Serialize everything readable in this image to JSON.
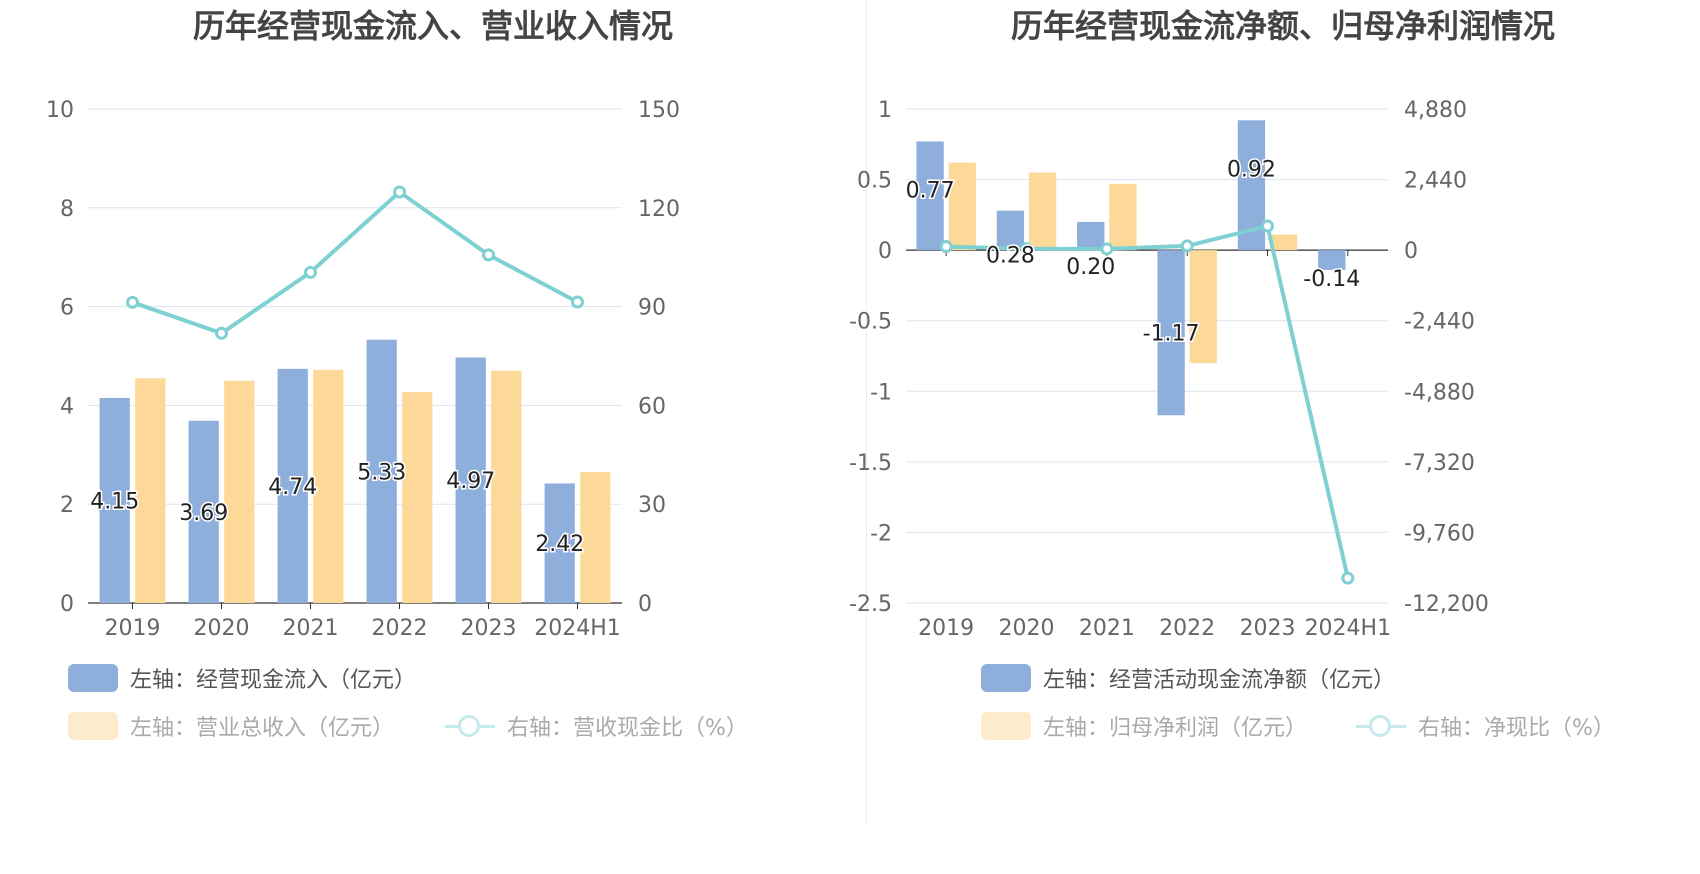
{
  "colors": {
    "bar_primary": "#8eaedc",
    "bar_secondary": "#fdd999",
    "line": "#7fd0d2",
    "grid": "#dfe3ef",
    "axis_text": "#666666",
    "title_text": "#444444"
  },
  "left": {
    "title": "历年经营现金流入、营业收入情况",
    "legend": {
      "series1": "左轴：经营现金流入（亿元）",
      "series2": "左轴：营业总收入（亿元）",
      "series3": "右轴：营收现金比（%）"
    }
  },
  "right": {
    "title": "历年经营现金流净额、归母净利润情况",
    "legend": {
      "series1": "左轴：经营活动现金流净额（亿元）",
      "series2": "左轴：归母净利润（亿元）",
      "series3": "右轴：净现比（%）"
    }
  },
  "chart_data": [
    {
      "type": "bar",
      "title": "历年经营现金流入、营业收入情况",
      "categories": [
        "2019",
        "2020",
        "2021",
        "2022",
        "2023",
        "2024H1"
      ],
      "y_left": {
        "min": 0,
        "max": 10,
        "ticks": [
          "10",
          "8",
          "6",
          "4",
          "2",
          "0"
        ]
      },
      "y_right": {
        "min": 0,
        "max": 150,
        "ticks": [
          "150",
          "120",
          "90",
          "60",
          "30",
          "0"
        ]
      },
      "grid": true,
      "legend_position": "bottom",
      "series": [
        {
          "name": "左轴：经营现金流入（亿元）",
          "type": "bar",
          "axis": "left",
          "values": [
            4.15,
            3.69,
            4.74,
            5.33,
            4.97,
            2.42
          ],
          "labels": [
            "4.15",
            "3.69",
            "4.74",
            "5.33",
            "4.97",
            "2.42"
          ]
        },
        {
          "name": "左轴：营业总收入（亿元）",
          "type": "bar",
          "axis": "left",
          "values": [
            4.55,
            4.5,
            4.72,
            4.27,
            4.7,
            2.65
          ]
        },
        {
          "name": "右轴：营收现金比（%）",
          "type": "line",
          "axis": "right",
          "values": [
            91.3,
            81.9,
            100.4,
            124.8,
            105.7,
            91.4
          ]
        }
      ]
    },
    {
      "type": "bar",
      "title": "历年经营现金流净额、归母净利润情况",
      "categories": [
        "2019",
        "2020",
        "2021",
        "2022",
        "2023",
        "2024H1"
      ],
      "y_left": {
        "min": -2.5,
        "max": 1,
        "ticks": [
          "1",
          "0.5",
          "0",
          "-0.5",
          "-1",
          "-1.5",
          "-2",
          "-2.5"
        ]
      },
      "y_right": {
        "min": -12200,
        "max": 4880,
        "ticks": [
          "4,880",
          "2,440",
          "0",
          "-2,440",
          "-4,880",
          "-7,320",
          "-9,760",
          "-12,200"
        ]
      },
      "grid": true,
      "legend_position": "bottom",
      "series": [
        {
          "name": "左轴：经营活动现金流净额（亿元）",
          "type": "bar",
          "axis": "left",
          "values": [
            0.77,
            0.28,
            0.2,
            -1.17,
            0.92,
            -0.14
          ],
          "labels": [
            "0.77",
            "0.28",
            "0.20",
            "-1.17",
            "0.92",
            "-0.14"
          ]
        },
        {
          "name": "左轴：归母净利润（亿元）",
          "type": "bar",
          "axis": "left",
          "values": [
            0.62,
            0.55,
            0.47,
            -0.8,
            0.11,
            0
          ]
        },
        {
          "name": "右轴：净现比（%）",
          "type": "line",
          "axis": "right",
          "values": [
            124,
            51,
            43,
            146,
            836,
            -11340
          ]
        }
      ]
    }
  ]
}
